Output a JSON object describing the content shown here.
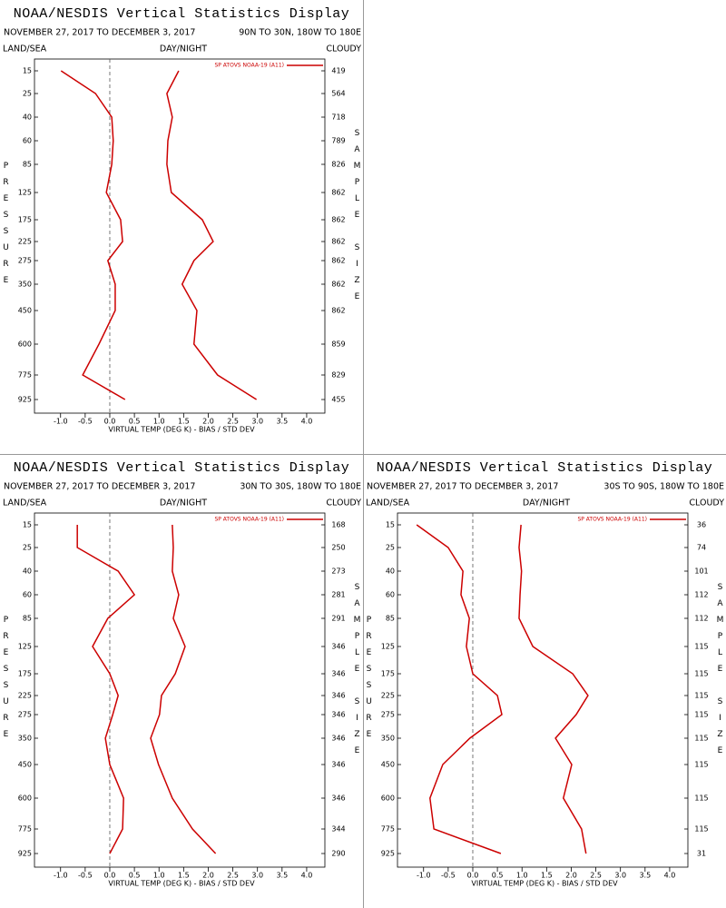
{
  "chart_data": [
    {
      "type": "line",
      "title": "NOAA/NESDIS Vertical Statistics Display",
      "date_range": "NOVEMBER 27, 2017 TO DECEMBER 3, 2017",
      "region": "90N TO 30N, 180W TO 180E",
      "top_left_label": "LAND/SEA",
      "top_center_label": "DAY/NIGHT",
      "top_right_label": "CLOUDY",
      "y_label": "PRESSURE",
      "y2_label": "SAMPLE SIZE",
      "x_label": "VIRTUAL TEMP (DEG K) - BIAS / STD DEV",
      "legend": "SP ATOVS NOAA-19 (A11)",
      "categories": [
        "15",
        "25",
        "40",
        "60",
        "85",
        "125",
        "175",
        "225",
        "275",
        "350",
        "450",
        "600",
        "775",
        "925"
      ],
      "sample_size": [
        "419",
        "564",
        "718",
        "789",
        "826",
        "862",
        "862",
        "862",
        "862",
        "862",
        "862",
        "859",
        "829",
        "455"
      ],
      "series": [
        {
          "color": "#cc0000",
          "values": [
            -0.99,
            -0.29,
            0.04,
            0.07,
            0.04,
            -0.07,
            0.22,
            0.26,
            -0.04,
            0.11,
            0.11,
            -0.22,
            -0.55,
            0.31
          ]
        },
        {
          "color": "#cc0000",
          "values": [
            1.4,
            1.16,
            1.27,
            1.18,
            1.16,
            1.25,
            1.88,
            2.1,
            1.71,
            1.47,
            1.77,
            1.71,
            2.19,
            2.98
          ]
        }
      ],
      "xlim": [
        -1.53,
        4.37
      ],
      "xticks": [
        {
          "value": -1,
          "label": "-1.0"
        },
        {
          "value": -0.5,
          "label": "-0.5"
        },
        {
          "value": 0,
          "label": "0.0"
        },
        0.5,
        {
          "value": 1,
          "label": "1.0"
        },
        1.5,
        {
          "value": 2,
          "label": "2.0"
        },
        2.5,
        {
          "value": 3,
          "label": "3.0"
        },
        3.5,
        {
          "value": 4,
          "label": "4.0"
        }
      ],
      "zero_line": 0
    },
    {
      "type": "line",
      "title": "NOAA/NESDIS Vertical Statistics Display",
      "date_range": "NOVEMBER 27, 2017 TO DECEMBER 3, 2017",
      "region": "30N TO 30S, 180W TO 180E",
      "top_left_label": "LAND/SEA",
      "top_center_label": "DAY/NIGHT",
      "top_right_label": "CLOUDY",
      "y_label": "PRESSURE",
      "y2_label": "SAMPLE SIZE",
      "x_label": "VIRTUAL TEMP (DEG K) - BIAS / STD DEV",
      "legend": "SP ATOVS NOAA-19 (A11)",
      "categories": [
        "15",
        "25",
        "40",
        "60",
        "85",
        "125",
        "175",
        "225",
        "275",
        "350",
        "450",
        "600",
        "775",
        "925"
      ],
      "sample_size": [
        "168",
        "250",
        "273",
        "281",
        "291",
        "346",
        "346",
        "346",
        "346",
        "346",
        "346",
        "346",
        "344",
        "290"
      ],
      "series": [
        {
          "color": "#cc0000",
          "values": [
            -0.66,
            -0.66,
            0.17,
            0.5,
            -0.04,
            -0.35,
            0.0,
            0.17,
            0.06,
            -0.09,
            0.0,
            0.28,
            0.26,
            0.0
          ]
        },
        {
          "color": "#cc0000",
          "values": [
            1.27,
            1.29,
            1.27,
            1.4,
            1.29,
            1.53,
            1.33,
            1.05,
            1.01,
            0.83,
            0.99,
            1.27,
            1.68,
            2.15
          ]
        }
      ],
      "xlim": [
        -1.53,
        4.37
      ],
      "xticks": [
        {
          "value": -1,
          "label": "-1.0"
        },
        {
          "value": -0.5,
          "label": "-0.5"
        },
        {
          "value": 0,
          "label": "0.0"
        },
        0.5,
        {
          "value": 1,
          "label": "1.0"
        },
        1.5,
        {
          "value": 2,
          "label": "2.0"
        },
        2.5,
        {
          "value": 3,
          "label": "3.0"
        },
        3.5,
        {
          "value": 4,
          "label": "4.0"
        }
      ],
      "zero_line": 0
    },
    {
      "type": "line",
      "title": "NOAA/NESDIS Vertical Statistics Display",
      "date_range": "NOVEMBER 27, 2017 TO DECEMBER 3, 2017",
      "region": "30S TO 90S, 180W TO 180E",
      "top_left_label": "LAND/SEA",
      "top_center_label": "DAY/NIGHT",
      "top_right_label": "CLOUDY",
      "y_label": "PRESSURE",
      "y2_label": "SAMPLE SIZE",
      "x_label": "VIRTUAL TEMP (DEG K) - BIAS / STD DEV",
      "legend": "SP ATOVS NOAA-19 (A11)",
      "categories": [
        "15",
        "25",
        "40",
        "60",
        "85",
        "125",
        "175",
        "225",
        "275",
        "350",
        "450",
        "600",
        "775",
        "925"
      ],
      "sample_size": [
        "36",
        "74",
        "101",
        "112",
        "112",
        "115",
        "115",
        "115",
        "115",
        "115",
        "115",
        "115",
        "115",
        "31"
      ],
      "series": [
        {
          "color": "#cc0000",
          "values": [
            -1.14,
            -0.5,
            -0.2,
            -0.24,
            -0.07,
            -0.13,
            0.0,
            0.5,
            0.59,
            -0.06,
            -0.61,
            -0.87,
            -0.79,
            0.57
          ]
        },
        {
          "color": "#cc0000",
          "values": [
            0.98,
            0.94,
            0.99,
            0.96,
            0.94,
            1.22,
            2.03,
            2.34,
            2.1,
            1.68,
            2.01,
            1.84,
            2.21,
            2.3
          ]
        }
      ],
      "xlim": [
        -1.53,
        4.37
      ],
      "xticks": [
        {
          "value": -1,
          "label": "-1.0"
        },
        {
          "value": -0.5,
          "label": "-0.5"
        },
        {
          "value": 0,
          "label": "0.0"
        },
        0.5,
        {
          "value": 1,
          "label": "1.0"
        },
        1.5,
        {
          "value": 2,
          "label": "2.0"
        },
        2.5,
        {
          "value": 3,
          "label": "3.0"
        },
        3.5,
        {
          "value": 4,
          "label": "4.0"
        }
      ],
      "zero_line": 0
    }
  ]
}
